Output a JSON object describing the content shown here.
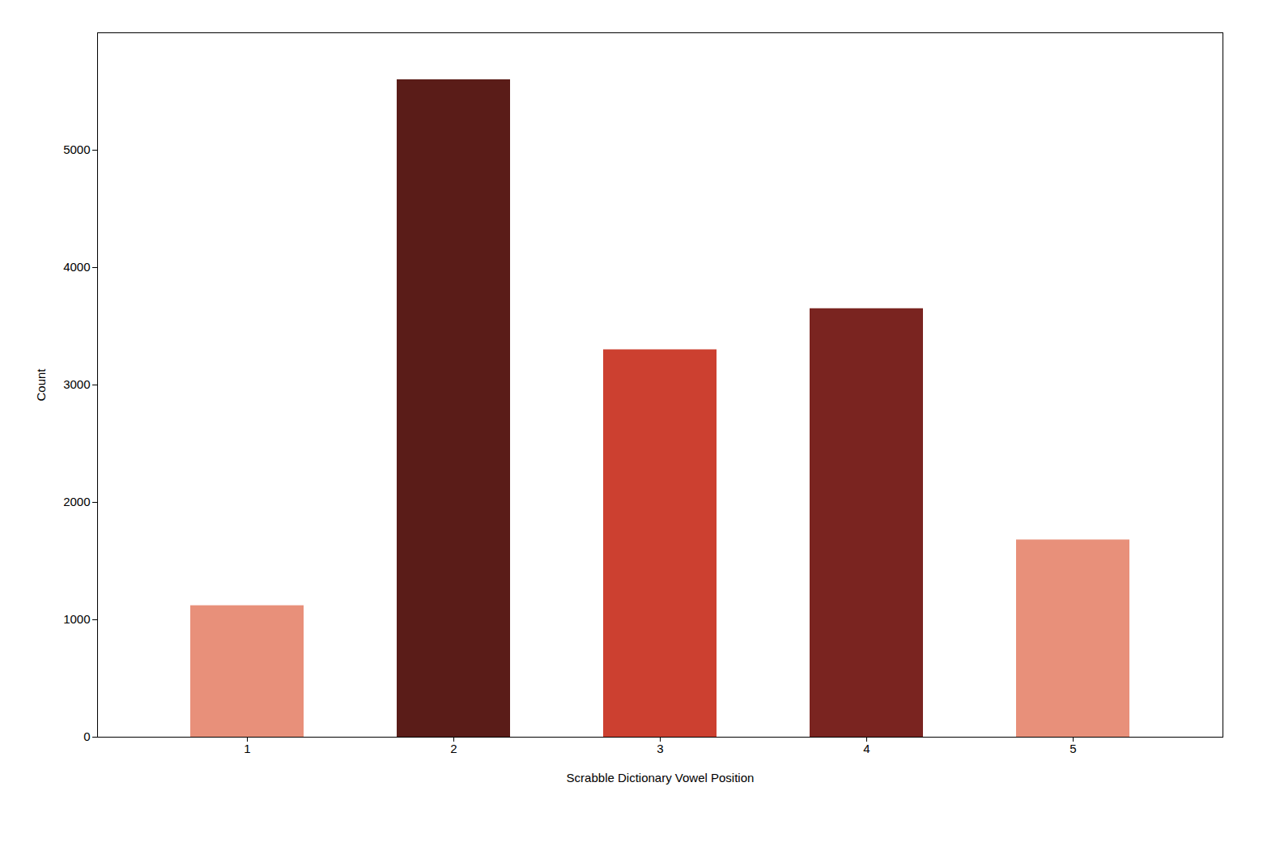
{
  "chart_data": {
    "type": "bar",
    "categories": [
      "1",
      "2",
      "3",
      "4",
      "5"
    ],
    "values": [
      1120,
      5600,
      3300,
      3650,
      1680
    ],
    "colors": [
      "#e8907a",
      "#5a1c18",
      "#cc4030",
      "#7a2420",
      "#e8907a"
    ],
    "xlabel": "Scrabble Dictionary Vowel Position",
    "ylabel": "Count",
    "ylim": [
      0,
      6000
    ],
    "yticks": [
      0,
      1000,
      2000,
      3000,
      4000,
      5000
    ],
    "grid": false
  }
}
